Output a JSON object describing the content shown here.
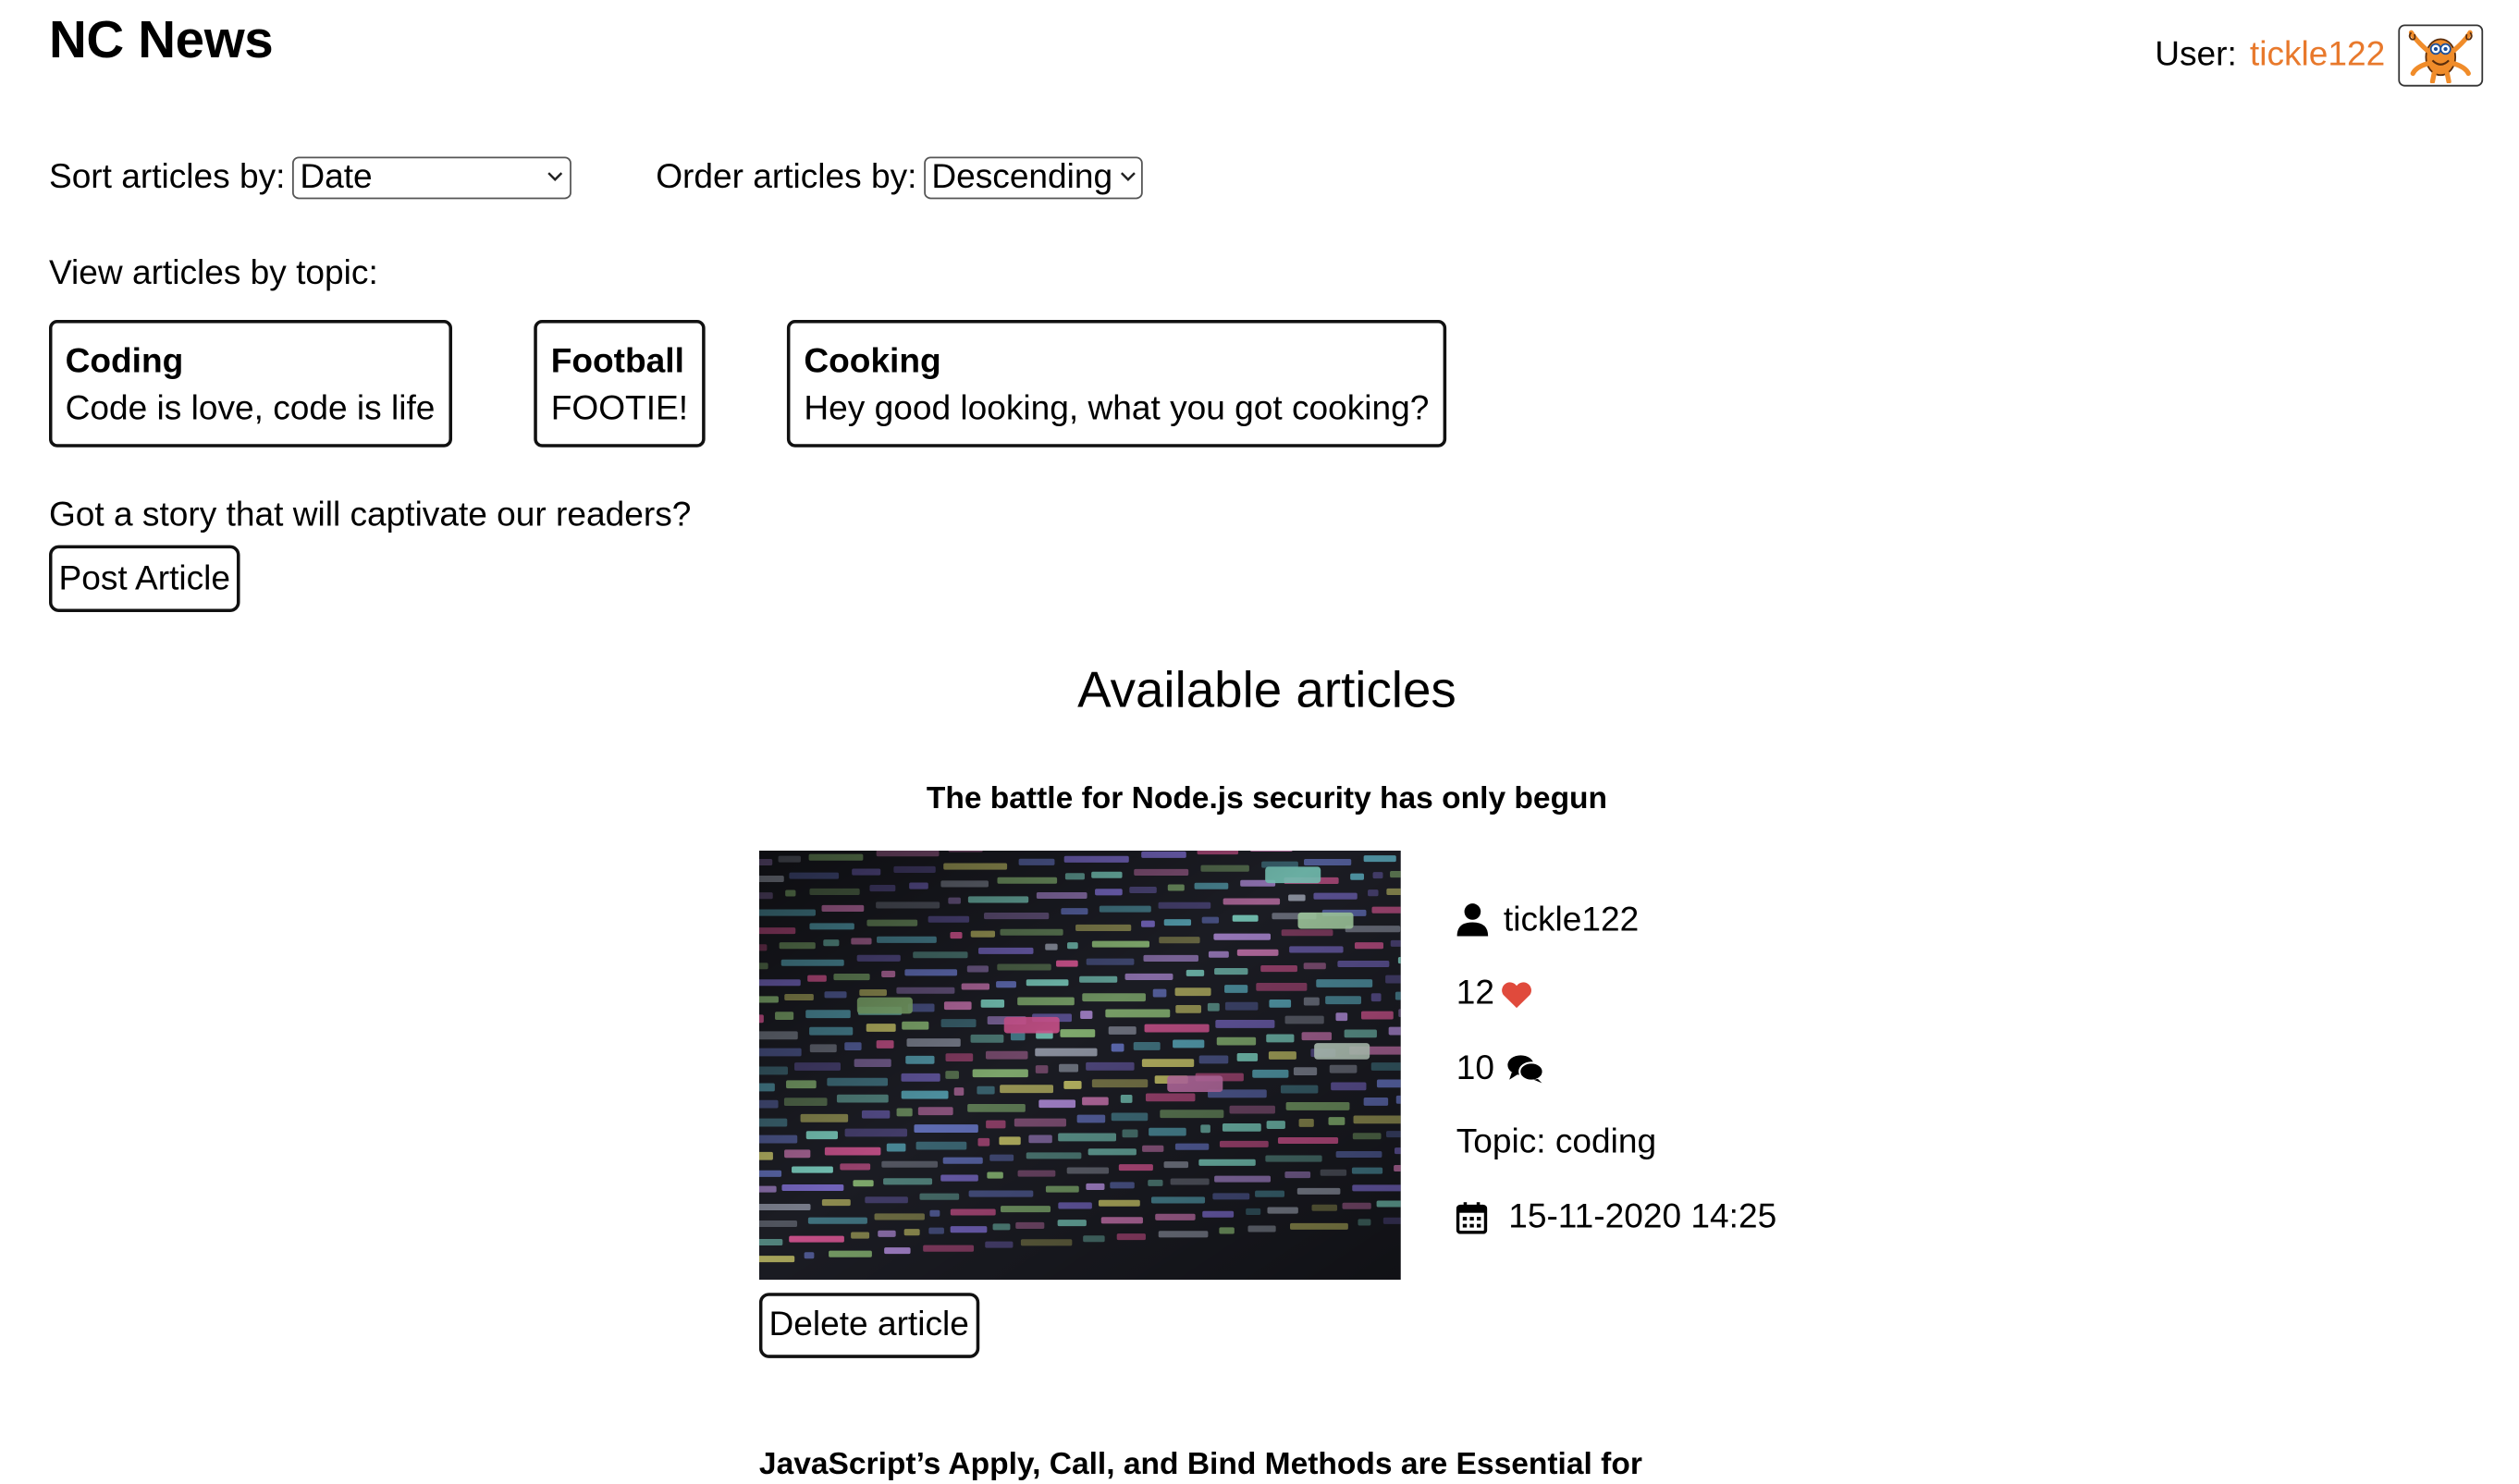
{
  "header": {
    "title": "NC News",
    "user_label": "User:",
    "username": "tickle122",
    "avatar_icon": "orange-monster-avatar-icon"
  },
  "controls": {
    "sort_label": "Sort articles by:",
    "sort_value": "Date",
    "order_label": "Order articles by:",
    "order_value": "Descending"
  },
  "topics": {
    "heading": "View articles by topic:",
    "items": [
      {
        "name": "Coding",
        "description": "Code is love, code is life"
      },
      {
        "name": "Football",
        "description": "FOOTIE!"
      },
      {
        "name": "Cooking",
        "description": "Hey good looking, what you got cooking?"
      }
    ]
  },
  "post": {
    "prompt": "Got a story that will captivate our readers?",
    "button_label": "Post Article"
  },
  "articles": {
    "heading": "Available articles",
    "items": [
      {
        "title": "The battle for Node.js security has only begun",
        "author": "tickle122",
        "votes": "12",
        "comment_count": "10",
        "topic": "Topic: coding",
        "date": "15-11-2020 14:25",
        "delete_label": "Delete article",
        "image_icon": "code-screen-photo"
      },
      {
        "title": "JavaScript’s Apply, Call, and Bind Methods are Essential for"
      }
    ]
  },
  "colors": {
    "accent": "#e8792c",
    "heart": "#e04a3c",
    "border": "#111111"
  },
  "icons": {
    "author": "user-icon",
    "votes": "heart-icon",
    "comments": "comments-icon",
    "date": "calendar-icon",
    "select_arrow": "chevron-down-icon"
  }
}
